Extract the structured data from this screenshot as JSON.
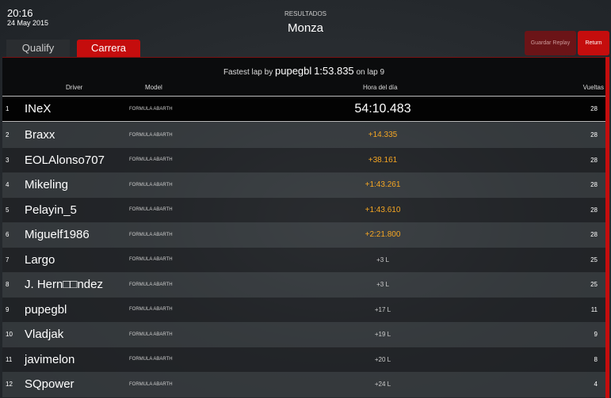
{
  "header": {
    "time": "20:16",
    "date": "24 May 2015",
    "subtitle": "RESULTADOS",
    "track": "Monza"
  },
  "tabs": [
    {
      "label": "Qualify",
      "active": false
    },
    {
      "label": "Carrera",
      "active": true
    }
  ],
  "buttons": {
    "save_replay": "Guardar Replay",
    "return": "Return"
  },
  "fastest": {
    "prefix": "Fastest lap by",
    "driver": "pupegbl",
    "time": "1:53.835",
    "suffix": "on lap 9"
  },
  "columns": {
    "driver": "Driver",
    "model": "Model",
    "time": "Hora del día",
    "laps": "Vueltas"
  },
  "colors": {
    "accent": "#c50d0d",
    "gap": "#f5a623"
  },
  "rows": [
    {
      "pos": "1",
      "driver": "INeX",
      "model": "FORMULA ABARTH",
      "gap": "54:10.483",
      "laps": "28"
    },
    {
      "pos": "2",
      "driver": "Braxx",
      "model": "FORMULA ABARTH",
      "gap": "+14.335",
      "laps": "28"
    },
    {
      "pos": "3",
      "driver": "EOLAlonso707",
      "model": "FORMULA ABARTH",
      "gap": "+38.161",
      "laps": "28"
    },
    {
      "pos": "4",
      "driver": "Mikeling",
      "model": "FORMULA ABARTH",
      "gap": "+1:43.261",
      "laps": "28"
    },
    {
      "pos": "5",
      "driver": "Pelayin_5",
      "model": "FORMULA ABARTH",
      "gap": "+1:43.610",
      "laps": "28"
    },
    {
      "pos": "6",
      "driver": "Miguelf1986",
      "model": "FORMULA ABARTH",
      "gap": "+2:21.800",
      "laps": "28"
    },
    {
      "pos": "7",
      "driver": "Largo",
      "model": "FORMULA ABARTH",
      "gap": "+3 L",
      "laps": "25"
    },
    {
      "pos": "8",
      "driver": "J. Hern□□ndez",
      "model": "FORMULA ABARTH",
      "gap": "+3 L",
      "laps": "25"
    },
    {
      "pos": "9",
      "driver": "pupegbl",
      "model": "FORMULA ABARTH",
      "gap": "+17 L",
      "laps": "11"
    },
    {
      "pos": "10",
      "driver": "Vladjak",
      "model": "FORMULA ABARTH",
      "gap": "+19 L",
      "laps": "9"
    },
    {
      "pos": "11",
      "driver": "javimelon",
      "model": "FORMULA ABARTH",
      "gap": "+20 L",
      "laps": "8"
    },
    {
      "pos": "12",
      "driver": "SQpower",
      "model": "FORMULA ABARTH",
      "gap": "+24 L",
      "laps": "4"
    }
  ]
}
